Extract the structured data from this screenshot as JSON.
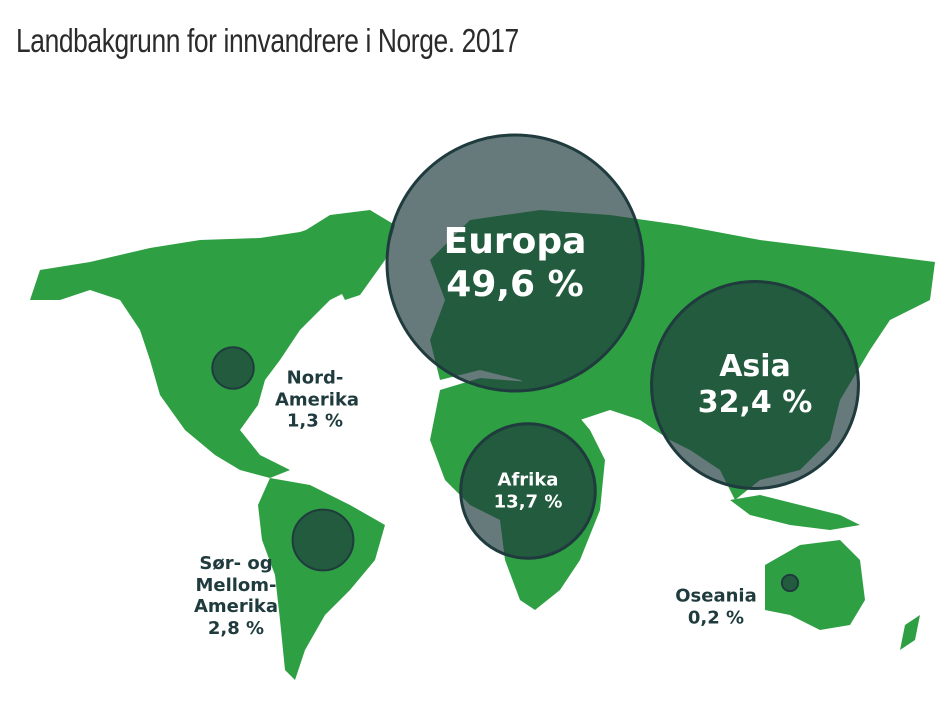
{
  "chart_data": {
    "type": "bubble",
    "title": "Landbakgrunn for innvandrere i Norge. 2017",
    "categories": [
      "Europa",
      "Asia",
      "Afrika",
      "Nord-Amerika",
      "Sør- og Mellom-Amerika",
      "Oseania"
    ],
    "values": [
      49.6,
      32.4,
      13.7,
      1.3,
      2.8,
      0.2
    ],
    "value_labels": [
      "49,6 %",
      "32,4 %",
      "13,7 %",
      "1,3 %",
      "2,8 %",
      "0,2 %"
    ],
    "color": "#1f3b3d"
  }
}
